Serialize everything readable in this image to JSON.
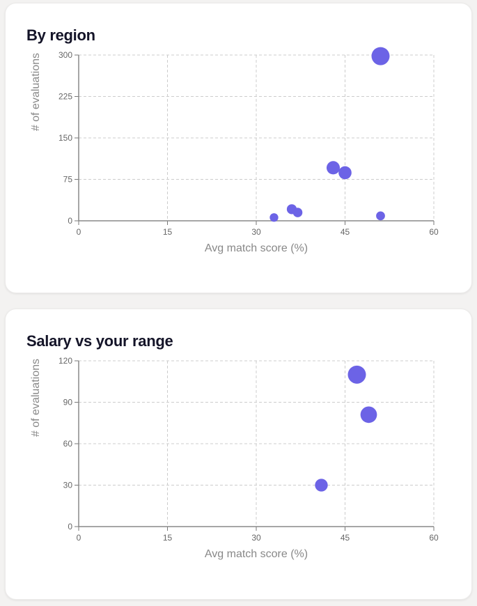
{
  "chart_data": [
    {
      "type": "scatter",
      "title": "By region",
      "xlabel": "Avg match score (%)",
      "ylabel": "# of evaluations",
      "xlim": [
        0,
        60
      ],
      "ylim": [
        0,
        300
      ],
      "xticks": [
        0,
        15,
        30,
        45,
        60
      ],
      "yticks": [
        0,
        75,
        150,
        225,
        300
      ],
      "grid": true,
      "color": "#6c63e6",
      "points": [
        {
          "x": 51,
          "y": 298
        },
        {
          "x": 43,
          "y": 96
        },
        {
          "x": 45,
          "y": 87
        },
        {
          "x": 36,
          "y": 21
        },
        {
          "x": 37,
          "y": 15
        },
        {
          "x": 33,
          "y": 6
        },
        {
          "x": 51,
          "y": 9
        }
      ]
    },
    {
      "type": "scatter",
      "title": "Salary vs your range",
      "xlabel": "Avg match score (%)",
      "ylabel": "# of evaluations",
      "xlim": [
        0,
        60
      ],
      "ylim": [
        0,
        120
      ],
      "xticks": [
        0,
        15,
        30,
        45,
        60
      ],
      "yticks": [
        0,
        30,
        60,
        90,
        120
      ],
      "grid": true,
      "color": "#6c63e6",
      "points": [
        {
          "x": 47,
          "y": 110
        },
        {
          "x": 49,
          "y": 81
        },
        {
          "x": 41,
          "y": 30
        }
      ]
    }
  ]
}
